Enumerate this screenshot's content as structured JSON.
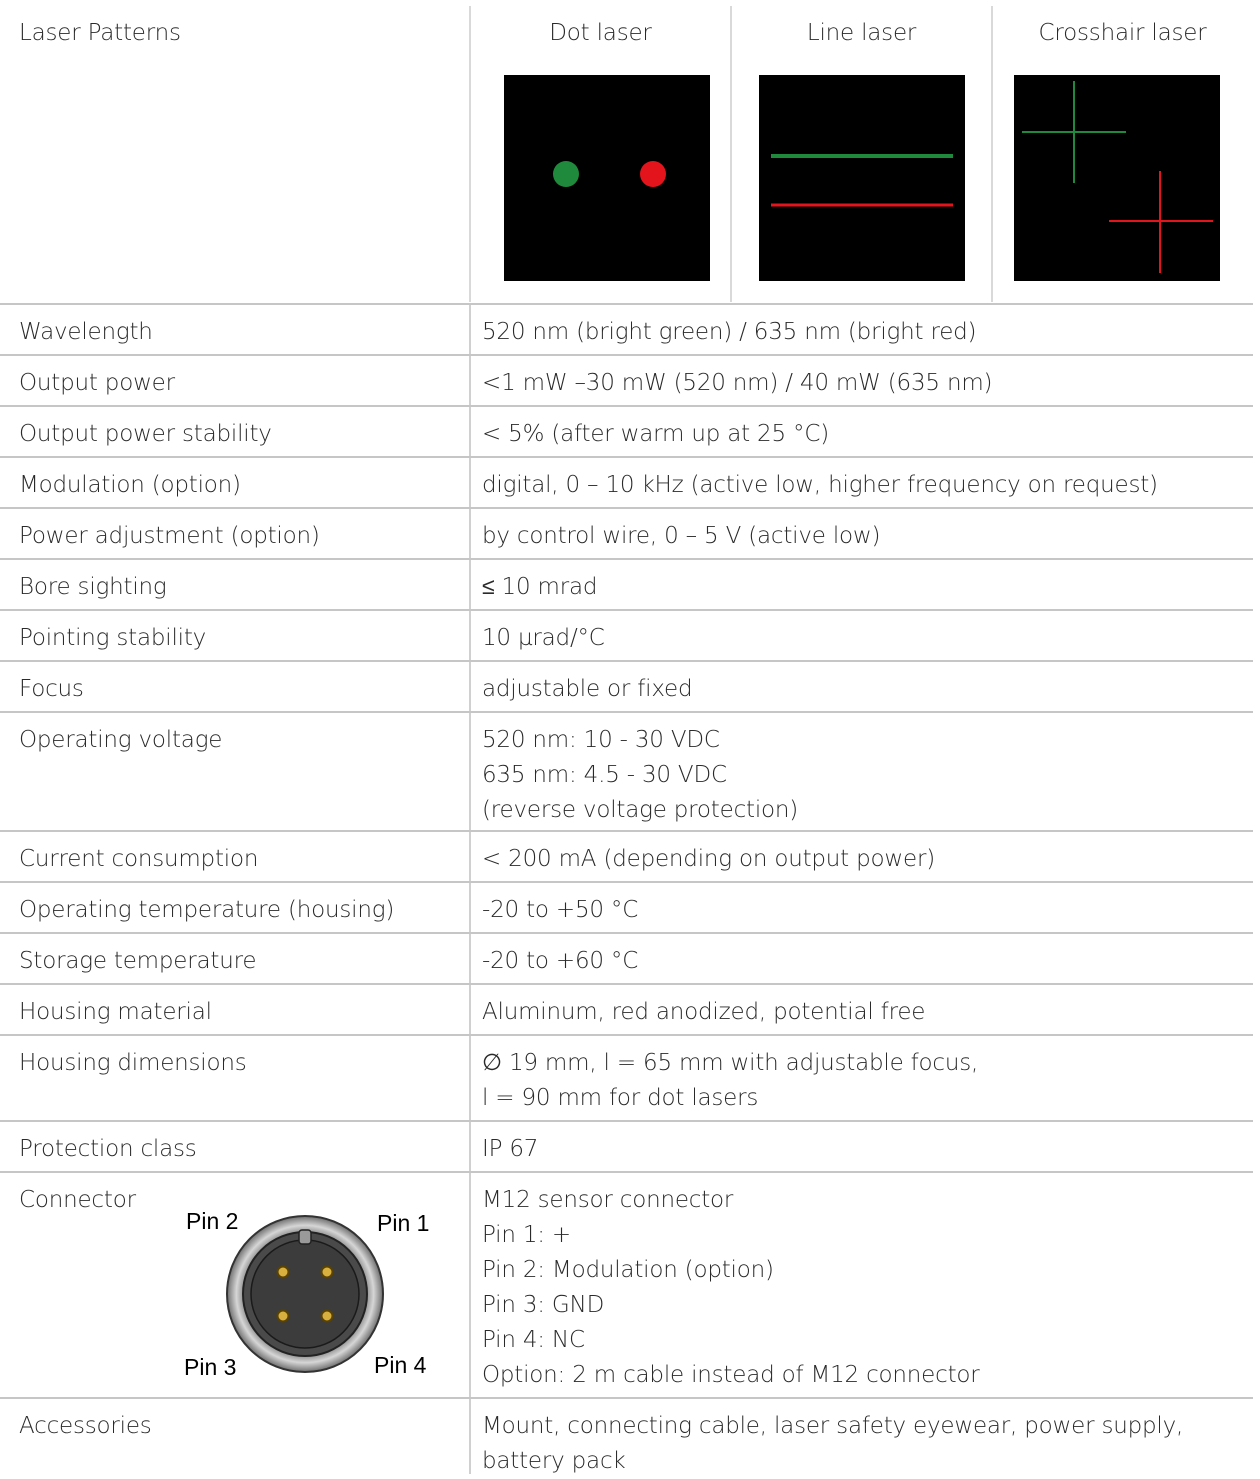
{
  "header": {
    "label": "Laser Patterns",
    "columns": [
      "Dot laser",
      "Line laser",
      "Crosshair laser"
    ]
  },
  "colors": {
    "green": "#1f8a3c",
    "red": "#e3141b",
    "background": "#000000"
  },
  "rows": [
    {
      "label": "Wavelength",
      "value": [
        "520 nm (bright green) / 635 nm (bright red)"
      ]
    },
    {
      "label": "Output power",
      "value": [
        "<1 mW –30 mW (520 nm) / 40 mW (635 nm)"
      ]
    },
    {
      "label": "Output power stability",
      "value": [
        "< 5% (after warm up at 25 °C)"
      ]
    },
    {
      "label": "Modulation (option)",
      "value": [
        "digital, 0 – 10 kHz (active low, higher frequency on request)"
      ]
    },
    {
      "label": "Power adjustment (option)",
      "value": [
        "by control wire, 0 – 5 V (active low)"
      ]
    },
    {
      "label": "Bore sighting",
      "value": [
        "≤ 10 mrad"
      ]
    },
    {
      "label": "Pointing stability",
      "value": [
        "10 µrad/°C"
      ]
    },
    {
      "label": "Focus",
      "value": [
        "adjustable or fixed"
      ]
    },
    {
      "label": "Operating voltage",
      "value": [
        "520 nm: 10 - 30 VDC",
        "635 nm: 4.5 - 30 VDC",
        "(reverse voltage protection)"
      ]
    },
    {
      "label": "Current consumption",
      "value": [
        "< 200 mA (depending on output power)"
      ]
    },
    {
      "label": "Operating temperature (housing)",
      "value": [
        "-20 to +50 °C"
      ]
    },
    {
      "label": "Storage temperature",
      "value": [
        "-20 to +60 °C"
      ]
    },
    {
      "label": "Housing material",
      "value": [
        "Aluminum, red anodized, potential free"
      ]
    },
    {
      "label": "Housing dimensions",
      "value": [
        "∅ 19 mm, l = 65 mm with adjustable focus,",
        "l = 90 mm for dot lasers"
      ]
    },
    {
      "label": "Protection class",
      "value": [
        "IP 67"
      ]
    },
    {
      "label": "Connector",
      "value": [
        "M12 sensor connector",
        "Pin 1: +",
        "Pin 2: Modulation (option)",
        "Pin 3: GND",
        "Pin 4: NC",
        "Option: 2 m cable instead of M12 connector"
      ]
    },
    {
      "label": "Accessories",
      "value": [
        "Mount, connecting cable, laser safety eyewear, power supply,",
        "battery pack"
      ]
    }
  ],
  "connector_pins": [
    "Pin 1",
    "Pin 2",
    "Pin 3",
    "Pin 4"
  ]
}
